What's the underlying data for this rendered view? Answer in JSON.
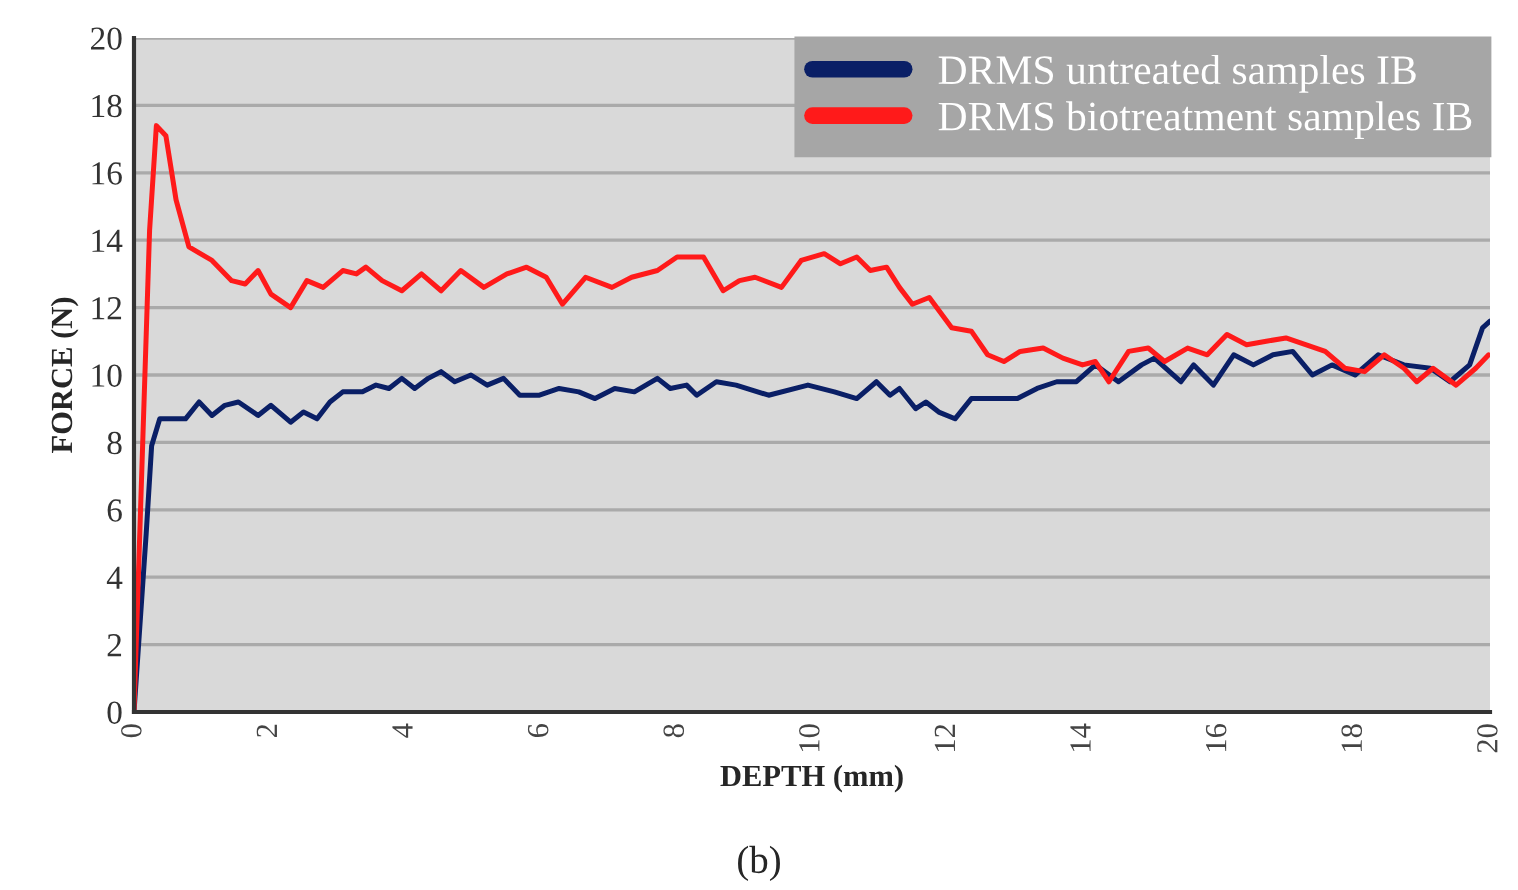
{
  "chart_data": {
    "type": "line",
    "xlabel": "DEPTH (mm)",
    "ylabel": "FORCE (N)",
    "xlim": [
      0,
      20
    ],
    "xticks": [
      0,
      2,
      4,
      6,
      8,
      10,
      12,
      14,
      16,
      18,
      20
    ],
    "ylim": [
      0,
      20
    ],
    "yticks": [
      0,
      2,
      4,
      6,
      8,
      10,
      12,
      14,
      16,
      18,
      20
    ],
    "grid": "y",
    "legend": "top right",
    "marker": "none",
    "line_style": "solid",
    "annotations": [
      "(b)"
    ],
    "series": [
      {
        "name": "DRMS untreated samples IB",
        "color": "#0a1f66",
        "x": [
          0,
          0.18,
          0.26,
          0.38,
          0.57,
          0.76,
          0.96,
          1.15,
          1.34,
          1.54,
          1.83,
          2.02,
          2.31,
          2.5,
          2.7,
          2.89,
          3.08,
          3.37,
          3.57,
          3.76,
          3.95,
          4.14,
          4.34,
          4.53,
          4.73,
          4.97,
          5.21,
          5.45,
          5.69,
          5.98,
          6.27,
          6.56,
          6.8,
          7.09,
          7.38,
          7.72,
          7.91,
          8.15,
          8.3,
          8.59,
          8.88,
          9.36,
          9.94,
          10.33,
          10.66,
          10.95,
          11.15,
          11.29,
          11.53,
          11.68,
          11.87,
          12.11,
          12.35,
          12.74,
          13.03,
          13.32,
          13.61,
          13.9,
          14.18,
          14.52,
          14.86,
          15.05,
          15.44,
          15.63,
          15.92,
          16.22,
          16.51,
          16.8,
          17.09,
          17.38,
          17.67,
          18.01,
          18.35,
          18.73,
          19.12,
          19.41,
          19.7,
          19.89,
          20.0
        ],
        "values": [
          0,
          5.3,
          7.9,
          8.7,
          8.7,
          8.7,
          9.2,
          8.8,
          9.1,
          9.2,
          8.8,
          9.1,
          8.6,
          8.9,
          8.7,
          9.2,
          9.5,
          9.5,
          9.7,
          9.6,
          9.9,
          9.6,
          9.9,
          10.1,
          9.8,
          10.0,
          9.7,
          9.9,
          9.4,
          9.4,
          9.6,
          9.5,
          9.3,
          9.6,
          9.5,
          9.9,
          9.6,
          9.7,
          9.4,
          9.8,
          9.7,
          9.4,
          9.7,
          9.5,
          9.3,
          9.8,
          9.4,
          9.6,
          9.0,
          9.2,
          8.9,
          8.7,
          9.3,
          9.3,
          9.3,
          9.6,
          9.8,
          9.8,
          10.3,
          9.8,
          10.3,
          10.5,
          9.8,
          10.3,
          9.7,
          10.6,
          10.3,
          10.6,
          10.7,
          10.0,
          10.3,
          10.0,
          10.6,
          10.3,
          10.2,
          9.8,
          10.3,
          11.4,
          11.6
        ]
      },
      {
        "name": "DRMS biotreatment samples IB",
        "color": "#ff1a1a",
        "x": [
          0,
          0.23,
          0.33,
          0.47,
          0.62,
          0.81,
          1.15,
          1.44,
          1.64,
          1.83,
          2.02,
          2.31,
          2.55,
          2.79,
          3.08,
          3.28,
          3.42,
          3.66,
          3.95,
          4.24,
          4.53,
          4.82,
          5.16,
          5.5,
          5.79,
          6.08,
          6.32,
          6.66,
          7.05,
          7.34,
          7.72,
          8.01,
          8.4,
          8.69,
          8.93,
          9.16,
          9.55,
          9.84,
          10.18,
          10.42,
          10.66,
          10.86,
          11.1,
          11.29,
          11.48,
          11.73,
          12.06,
          12.35,
          12.59,
          12.83,
          13.07,
          13.41,
          13.7,
          13.99,
          14.18,
          14.38,
          14.67,
          14.96,
          15.2,
          15.54,
          15.83,
          16.12,
          16.41,
          16.7,
          16.99,
          17.28,
          17.57,
          17.86,
          18.15,
          18.44,
          18.73,
          18.92,
          19.16,
          19.5,
          19.79,
          19.98
        ],
        "values": [
          0,
          14.3,
          17.4,
          17.1,
          15.2,
          13.8,
          13.4,
          12.8,
          12.7,
          13.1,
          12.4,
          12.0,
          12.8,
          12.6,
          13.1,
          13.0,
          13.2,
          12.8,
          12.5,
          13.0,
          12.5,
          13.1,
          12.6,
          13.0,
          13.2,
          12.9,
          12.1,
          12.9,
          12.6,
          12.9,
          13.1,
          13.5,
          13.5,
          12.5,
          12.8,
          12.9,
          12.6,
          13.4,
          13.6,
          13.3,
          13.5,
          13.1,
          13.2,
          12.6,
          12.1,
          12.3,
          11.4,
          11.3,
          10.6,
          10.4,
          10.7,
          10.8,
          10.5,
          10.3,
          10.4,
          9.8,
          10.7,
          10.8,
          10.4,
          10.8,
          10.6,
          11.2,
          10.9,
          11.0,
          11.1,
          10.9,
          10.7,
          10.2,
          10.1,
          10.6,
          10.2,
          9.8,
          10.2,
          9.7,
          10.2,
          10.6
        ]
      }
    ]
  }
}
